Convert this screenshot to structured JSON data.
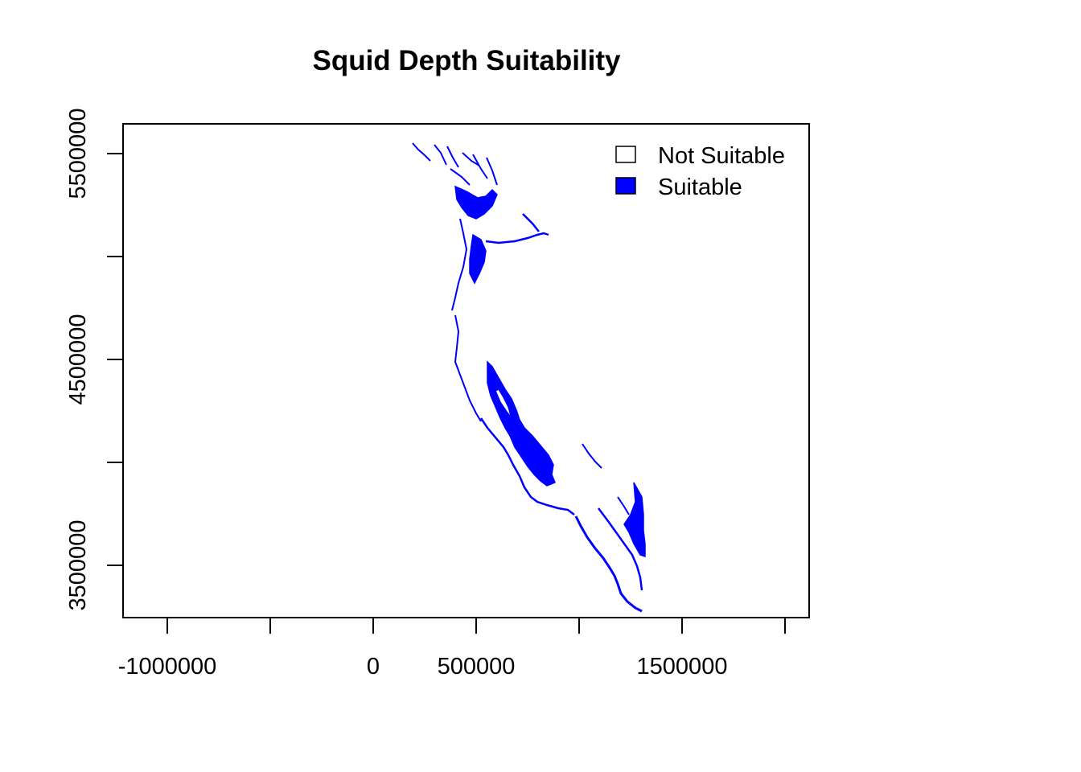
{
  "title": "Squid Depth Suitability",
  "x_axis": {
    "ticks": [
      -1000000,
      -500000,
      0,
      500000,
      1000000,
      1500000,
      2000000
    ],
    "tick_labels": [
      "-1000000",
      "",
      "0",
      "500000",
      "",
      "1500000",
      ""
    ]
  },
  "y_axis": {
    "ticks": [
      3500000,
      4000000,
      4500000,
      5000000,
      5500000
    ],
    "tick_labels": [
      "3500000",
      "",
      "4500000",
      "",
      "5500000"
    ]
  },
  "legend": {
    "items": [
      {
        "label": "Not Suitable",
        "color": "#ffffff"
      },
      {
        "label": "Suitable",
        "color": "#0000ff"
      }
    ]
  },
  "colors": {
    "suitable": "#0000ff",
    "not_suitable": "#ffffff"
  }
}
